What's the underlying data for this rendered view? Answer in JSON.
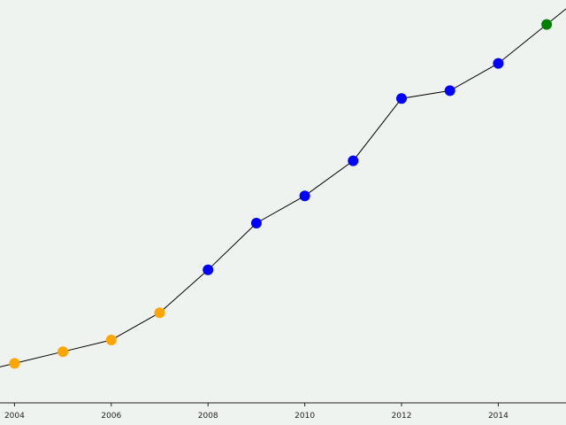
{
  "colors": {
    "background": "#eff3ef",
    "line": "#000000",
    "past_point": "#ffa500",
    "main_point": "#0000ff",
    "latest_point": "#008000"
  },
  "chart_data": {
    "type": "line",
    "title": "",
    "xlabel": "",
    "ylabel": "",
    "x_ticks": [
      "2004",
      "2006",
      "2008",
      "2010",
      "2012",
      "2014"
    ],
    "xlim": [
      2003.7,
      2015.4
    ],
    "ylim": [
      0,
      100
    ],
    "y_axis_visible": false,
    "grid": false,
    "legend": "none",
    "series": [
      {
        "x": [
          2004,
          2005,
          2006,
          2007,
          2008,
          2009,
          2010,
          2011,
          2012,
          2013,
          2014,
          2015
        ],
        "y": [
          9,
          12,
          15,
          22,
          33,
          45,
          52,
          61,
          77,
          79,
          86,
          96
        ],
        "point_groups": [
          "past",
          "past",
          "past",
          "past",
          "main",
          "main",
          "main",
          "main",
          "main",
          "main",
          "main",
          "latest"
        ]
      }
    ],
    "line_extends_beyond_range": true
  }
}
